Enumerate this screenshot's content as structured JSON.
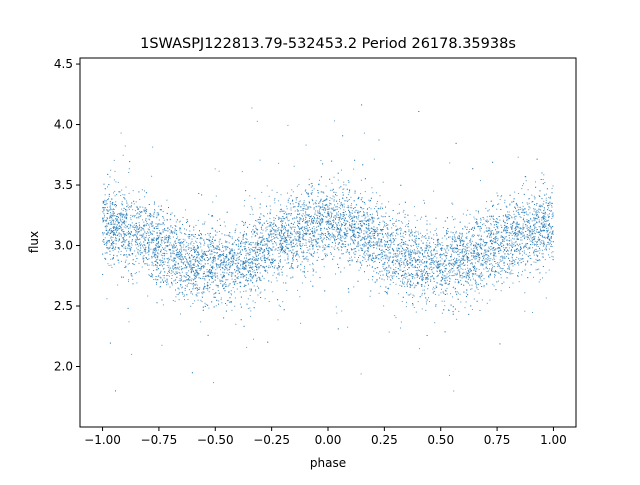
{
  "chart_data": {
    "type": "scatter",
    "title": "1SWASPJ122813.79-532453.2 Period 26178.35938s",
    "xlabel": "phase",
    "ylabel": "flux",
    "xlim": [
      -1.1,
      1.1
    ],
    "ylim": [
      1.5,
      4.55
    ],
    "x_ticks": [
      -1.0,
      -0.75,
      -0.5,
      -0.25,
      0.0,
      0.25,
      0.5,
      0.75,
      1.0
    ],
    "x_tick_labels": [
      "−1.00",
      "−0.75",
      "−0.50",
      "−0.25",
      "0.00",
      "0.25",
      "0.50",
      "0.75",
      "1.00"
    ],
    "y_ticks": [
      2.0,
      2.5,
      3.0,
      3.5,
      4.0,
      4.5
    ],
    "y_tick_labels": [
      "2.0",
      "2.5",
      "3.0",
      "3.5",
      "4.0",
      "4.5"
    ],
    "grid": false,
    "legend": "none",
    "series": [
      {
        "color": "#1f77b4",
        "x_range": [
          -1.0,
          1.0
        ],
        "mean_level": 3.0,
        "amplitude": 0.17,
        "maxima_phase": [
          -1.0,
          0.0,
          1.0
        ],
        "minima_phase": [
          -0.5,
          0.5
        ],
        "point_count": 9000
      }
    ]
  }
}
